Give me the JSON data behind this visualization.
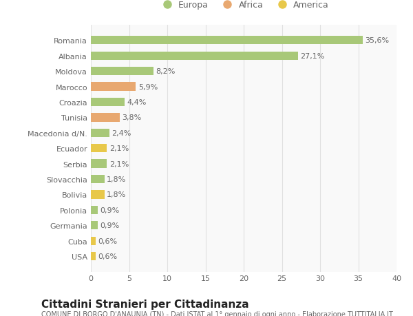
{
  "categories": [
    "USA",
    "Cuba",
    "Germania",
    "Polonia",
    "Bolivia",
    "Slovacchia",
    "Serbia",
    "Ecuador",
    "Macedonia d/N.",
    "Tunisia",
    "Croazia",
    "Marocco",
    "Moldova",
    "Albania",
    "Romania"
  ],
  "values": [
    0.6,
    0.6,
    0.9,
    0.9,
    1.8,
    1.8,
    2.1,
    2.1,
    2.4,
    3.8,
    4.4,
    5.9,
    8.2,
    27.1,
    35.6
  ],
  "labels": [
    "0,6%",
    "0,6%",
    "0,9%",
    "0,9%",
    "1,8%",
    "1,8%",
    "2,1%",
    "2,1%",
    "2,4%",
    "3,8%",
    "4,4%",
    "5,9%",
    "8,2%",
    "27,1%",
    "35,6%"
  ],
  "colors": [
    "#e8c84a",
    "#e8c84a",
    "#a8c878",
    "#a8c878",
    "#e8c84a",
    "#a8c878",
    "#a8c878",
    "#e8c84a",
    "#a8c878",
    "#e8a870",
    "#a8c878",
    "#e8a870",
    "#a8c878",
    "#a8c878",
    "#a8c878"
  ],
  "legend_labels": [
    "Europa",
    "Africa",
    "America"
  ],
  "legend_colors": [
    "#a8c878",
    "#e8a870",
    "#e8c84a"
  ],
  "title": "Cittadini Stranieri per Cittadinanza",
  "subtitle": "COMUNE DI BORGO D'ANAUNIA (TN) - Dati ISTAT al 1° gennaio di ogni anno - Elaborazione TUTTITALIA.IT",
  "xlim": [
    0,
    40
  ],
  "xticks": [
    0,
    5,
    10,
    15,
    20,
    25,
    30,
    35,
    40
  ],
  "bg_color": "#ffffff",
  "plot_bg_color": "#f9f9f9",
  "grid_color": "#e0e0e0",
  "bar_height": 0.55,
  "label_fontsize": 8,
  "title_fontsize": 11,
  "subtitle_fontsize": 7,
  "tick_fontsize": 8,
  "legend_fontsize": 9,
  "text_color": "#666666",
  "title_color": "#222222"
}
